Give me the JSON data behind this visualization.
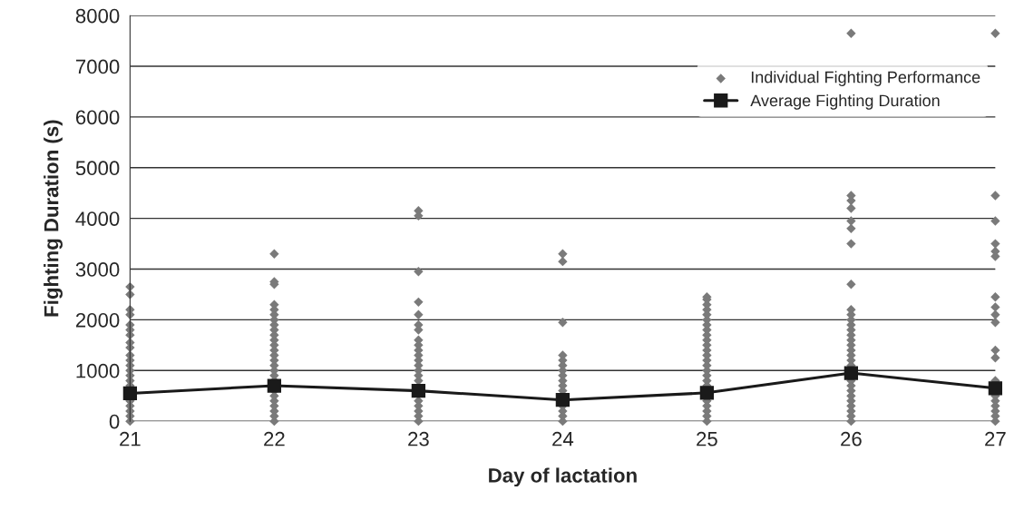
{
  "chart_data": {
    "type": "scatter",
    "xlabel": "Day of lactation",
    "ylabel": "Fighting Duration (s)",
    "xlim": [
      21,
      27
    ],
    "xticks": [
      21,
      22,
      23,
      24,
      25,
      26,
      27
    ],
    "ylim": [
      0,
      8000
    ],
    "yticks": [
      0,
      1000,
      2000,
      3000,
      4000,
      5000,
      6000,
      7000,
      8000
    ],
    "grid": "y",
    "legend": "top right",
    "series": [
      {
        "name": "Individual Fighting Performance",
        "marker": "diamond",
        "color": "#7a7a7a",
        "x": [
          21,
          21,
          21,
          21,
          21,
          21,
          21,
          21,
          21,
          21,
          21,
          21,
          21,
          21,
          21,
          21,
          21,
          21,
          21,
          21,
          21,
          22,
          22,
          22,
          22,
          22,
          22,
          22,
          22,
          22,
          22,
          22,
          22,
          22,
          22,
          22,
          22,
          22,
          22,
          22,
          22,
          22,
          22,
          22,
          22,
          22,
          22,
          23,
          23,
          23,
          23,
          23,
          23,
          23,
          23,
          23,
          23,
          23,
          23,
          23,
          23,
          23,
          23,
          23,
          23,
          23,
          23,
          23,
          24,
          24,
          24,
          24,
          24,
          24,
          24,
          24,
          24,
          24,
          24,
          24,
          24,
          24,
          24,
          25,
          25,
          25,
          25,
          25,
          25,
          25,
          25,
          25,
          25,
          25,
          25,
          25,
          25,
          25,
          25,
          25,
          25,
          25,
          25,
          25,
          25,
          25,
          25,
          26,
          26,
          26,
          26,
          26,
          26,
          26,
          26,
          26,
          26,
          26,
          26,
          26,
          26,
          26,
          26,
          26,
          26,
          26,
          26,
          26,
          26,
          26,
          26,
          26,
          26,
          26,
          26,
          26,
          27,
          27,
          27,
          27,
          27,
          27,
          27,
          27,
          27,
          27,
          27,
          27,
          27,
          27,
          27,
          27,
          27,
          27,
          27
        ],
        "values": [
          0,
          100,
          200,
          300,
          400,
          700,
          800,
          900,
          1000,
          1100,
          1200,
          1300,
          1450,
          1550,
          1700,
          1800,
          1900,
          2100,
          2200,
          2500,
          2650,
          0,
          100,
          200,
          300,
          400,
          500,
          600,
          800,
          900,
          1000,
          1100,
          1200,
          1300,
          1400,
          1500,
          1600,
          1700,
          1800,
          1900,
          2000,
          2100,
          2200,
          2300,
          2700,
          2750,
          3300,
          0,
          100,
          200,
          300,
          400,
          800,
          900,
          1000,
          1100,
          1200,
          1300,
          1400,
          1500,
          1600,
          1800,
          1900,
          2100,
          2350,
          2950,
          4050,
          4150,
          0,
          100,
          200,
          300,
          600,
          700,
          800,
          900,
          1000,
          1100,
          1200,
          1300,
          1950,
          3150,
          3300,
          0,
          100,
          200,
          300,
          400,
          700,
          800,
          900,
          1000,
          1100,
          1200,
          1300,
          1400,
          1500,
          1600,
          1700,
          1800,
          1900,
          2000,
          2100,
          2200,
          2300,
          2400,
          2450,
          0,
          100,
          200,
          300,
          400,
          500,
          600,
          700,
          800,
          1100,
          1200,
          1300,
          1400,
          1500,
          1600,
          1700,
          1800,
          1900,
          2000,
          2100,
          2200,
          2700,
          3500,
          3800,
          3950,
          4200,
          4350,
          4450,
          7650,
          0,
          100,
          200,
          300,
          400,
          500,
          800,
          1250,
          1400,
          1950,
          2100,
          2250,
          2450,
          3250,
          3350,
          3500,
          3950,
          4450,
          7650
        ]
      },
      {
        "name": "Average Fighting Duration",
        "type": "line",
        "marker": "square",
        "line_style": "solid",
        "color": "#1a1a1a",
        "x": [
          21,
          22,
          23,
          24,
          25,
          26,
          27
        ],
        "values": [
          550,
          700,
          600,
          420,
          560,
          950,
          650
        ]
      }
    ]
  }
}
